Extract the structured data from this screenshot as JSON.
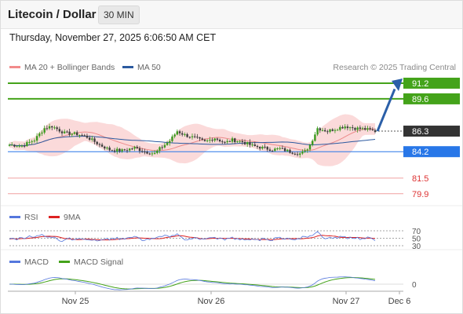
{
  "header": {
    "title": "Litecoin / Dollar",
    "interval": "30 MIN"
  },
  "timestamp": "Thursday, November 27, 2025 6:06:50 AM CET",
  "legend": {
    "ma20": {
      "label": "MA 20 + Bollinger Bands",
      "color": "#f28b8b"
    },
    "ma50": {
      "label": "MA 50",
      "color": "#2c5aa0"
    }
  },
  "credit": "Research © 2025 Trading Central",
  "colors": {
    "bull": "#3a9a1e",
    "bear": "#3d3d3d",
    "bollinger": "#fad4d4",
    "ma20": "#ec8a8a",
    "ma50": "#2c5aa0",
    "target": "#44a31a",
    "pivot": "#333333",
    "support": "#2877e8",
    "resistance_sub": "#f0a0a0",
    "rsi": "#5577dd",
    "ma9": "#dd2222",
    "macd": "#5577dd",
    "macd_signal": "#44a31a",
    "arrow": "#2b5fa8"
  },
  "rsi_legend": {
    "rsi": "RSI",
    "ma9": "9MA"
  },
  "macd_legend": {
    "macd": "MACD",
    "signal": "MACD Signal"
  },
  "chart_data": {
    "type": "candlestick",
    "symbol": "Litecoin / Dollar",
    "interval": "30 MIN",
    "y_range": [
      79.0,
      92.0
    ],
    "x_labels": [
      "Nov 25",
      "Nov 26",
      "Nov 27",
      "Dec 6"
    ],
    "levels": [
      {
        "value": 91.2,
        "label": "91.2",
        "kind": "target"
      },
      {
        "value": 89.6,
        "label": "89.6",
        "kind": "target"
      },
      {
        "value": 86.3,
        "label": "86.3",
        "kind": "pivot"
      },
      {
        "value": 84.2,
        "label": "84.2",
        "kind": "support"
      },
      {
        "value": 81.5,
        "label": "81.5",
        "kind": "support_light"
      },
      {
        "value": 79.9,
        "label": "79.9",
        "kind": "support_light"
      }
    ],
    "close_path": [
      [
        0,
        84.9
      ],
      [
        5,
        84.8
      ],
      [
        10,
        85.4
      ],
      [
        14,
        86.6
      ],
      [
        17,
        86.8
      ],
      [
        22,
        86.1
      ],
      [
        27,
        86.0
      ],
      [
        31,
        85.7
      ],
      [
        36,
        84.9
      ],
      [
        40,
        84.4
      ],
      [
        45,
        84.3
      ],
      [
        50,
        84.6
      ],
      [
        54,
        84.2
      ],
      [
        58,
        84.0
      ],
      [
        60,
        84.5
      ],
      [
        64,
        85.3
      ],
      [
        67,
        86.3
      ],
      [
        70,
        85.9
      ],
      [
        74,
        85.6
      ],
      [
        78,
        85.2
      ],
      [
        82,
        85.6
      ],
      [
        86,
        85.1
      ],
      [
        89,
        85.4
      ],
      [
        93,
        85.2
      ],
      [
        97,
        84.8
      ],
      [
        101,
        84.6
      ],
      [
        105,
        84.4
      ],
      [
        108,
        84.5
      ],
      [
        112,
        84.2
      ],
      [
        116,
        84.0
      ],
      [
        118,
        84.2
      ],
      [
        120,
        84.9
      ],
      [
        123,
        86.6
      ],
      [
        127,
        86.3
      ],
      [
        131,
        86.6
      ],
      [
        134,
        86.8
      ],
      [
        138,
        86.6
      ],
      [
        142,
        86.5
      ],
      [
        146,
        86.3
      ]
    ],
    "rsi": {
      "labels": [
        "70",
        "50",
        "30"
      ],
      "range": [
        0,
        100
      ]
    },
    "macd": {
      "labels": [
        "0"
      ]
    }
  }
}
